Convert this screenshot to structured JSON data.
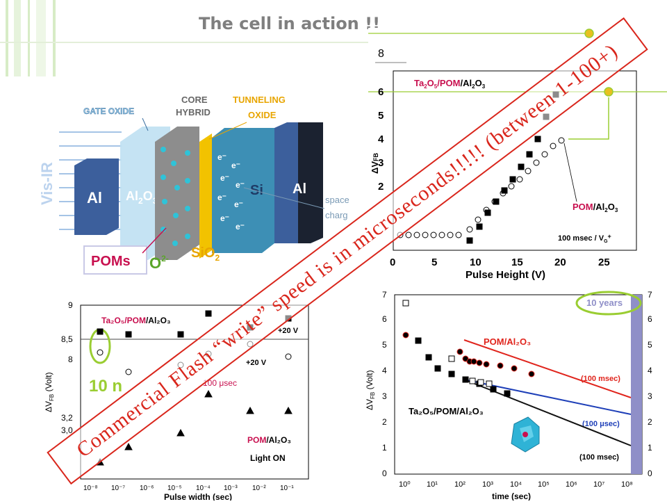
{
  "slide": {
    "title": "The cell in action !!",
    "banner": "Commercial Flash “write” speed is in microseconds!!!!! (between 1-100+)"
  },
  "cell_diagram": {
    "labels": {
      "gate_oxide": "GATE OXIDE",
      "core_hybrid_1": "CORE",
      "core_hybrid_2": "HYBRID",
      "tunneling_1": "TUNNELING",
      "tunneling_2": "OXIDE",
      "vis_ir": "Vis-IR",
      "al_left": "Al",
      "al2o3": "Al",
      "al2o3_sub": "2",
      "al2o3_o": "O",
      "al2o3_sub3": "3",
      "si": "Si",
      "al_right": "Al",
      "space_1": "space",
      "space_2": "charg",
      "poms": "POMs",
      "o2": "O",
      "o2_sup": "2-",
      "sio2": "SiO",
      "sio2_sub": "2",
      "electron": "e⁻"
    },
    "colors": {
      "al": "#3c5f9c",
      "al2o3": "#bfe0f2",
      "si": "#3d8fb5",
      "sio2": "#f2c200",
      "poms": "#c8104f",
      "o2": "#5aa52a",
      "tunneling": "#e8a500"
    }
  },
  "chart_top_right": {
    "xlabel": "Pulse Height (V)",
    "ylabel": "ΔV",
    "ylabel_sub": "FB",
    "xticks": [
      "0",
      "5",
      "10",
      "15",
      "20",
      "25"
    ],
    "yticks": [
      "2",
      "3",
      "4",
      "5",
      "6"
    ],
    "y_extra": "8",
    "legend1_a": "Ta",
    "legend1_b": "2",
    "legend1_c": "O",
    "legend1_d": "5",
    "legend1_e": "/POM",
    "legend1_f": "/Al",
    "legend1_g": "2",
    "legend1_h": "O",
    "legend1_i": "3",
    "legend2_a": "POM",
    "legend2_b": "/Al",
    "legend2_c": "2",
    "legend2_d": "O",
    "legend2_e": "3",
    "note": "100 msec / V",
    "note_sub": "G",
    "note_sup": "+"
  },
  "chart_bottom_left": {
    "xlabel": "Pulse width (sec)",
    "ylabel": "ΔV",
    "ylabel_sub": "FB",
    "ylabel_unit": " (Volt)",
    "xticks": [
      "10⁻⁸",
      "10⁻⁷",
      "10⁻⁶",
      "10⁻⁵",
      "10⁻⁴",
      "10⁻³",
      "10⁻²",
      "10⁻¹"
    ],
    "yticks_top": [
      "9",
      "8,5",
      "8"
    ],
    "yticks_bottom": [
      "3,2",
      "3,0"
    ],
    "legend1": "Ta₂O₅/POM/Al₂O₃",
    "legend1_pink": "Ta₂O₅/POM",
    "legend1_black": "/Al₂O₃",
    "plus20_a": "+20 V",
    "plus20_b": "+20 V",
    "annot_100": "100 μsec",
    "legend2_pink": "POM",
    "legend2_black": "/Al₂O₃",
    "light_on": "Light ON",
    "ten_label": "10 n"
  },
  "chart_bottom_right": {
    "xlabel": "time (sec)",
    "ylabel": "ΔV",
    "ylabel_sub": "FB",
    "ylabel_unit": " (Volt)",
    "xticks": [
      "10⁰",
      "10¹",
      "10²",
      "10³",
      "10⁴",
      "10⁵",
      "10⁶",
      "10⁷",
      "10⁸"
    ],
    "yticks_left": [
      "0",
      "1",
      "2",
      "3",
      "4",
      "5",
      "6",
      "7"
    ],
    "yticks_right": [
      "0",
      "1",
      "2",
      "3",
      "4",
      "5",
      "6",
      "7"
    ],
    "ten_years": "10 years",
    "series_pom": "POM/Al₂O₃",
    "series_ta": "Ta₂O₅/POM/Al₂O₃",
    "label_100msec_a": "(100 msec)",
    "label_100usec": "(100 μsec)",
    "label_100msec_b": "(100 msec)",
    "colors": {
      "red": "#e0241c",
      "blue": "#1e3fb8",
      "black": "#111111",
      "band": "#8f8fc8",
      "highlight": "#9acd32"
    }
  }
}
